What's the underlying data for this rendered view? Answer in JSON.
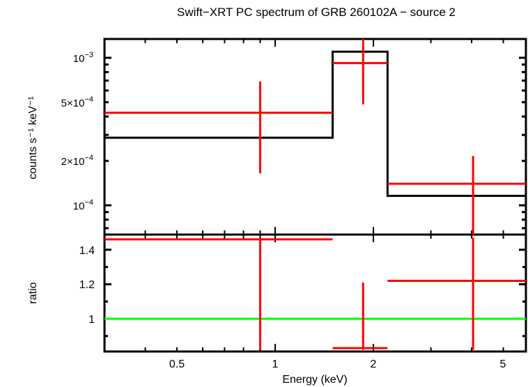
{
  "chart_data": [
    {
      "type": "scatter",
      "panel": "spectrum",
      "title": "Swift-XRT PC spectrum of GRB 260102A - source 2",
      "xlabel": "Energy (keV)",
      "ylabel": "counts s^-1 keV^-1",
      "xscale": "log",
      "yscale": "log",
      "xlim": [
        0.3,
        5.87
      ],
      "ylim": [
        5.5e-05,
        0.00122
      ],
      "ytick_labels": [
        "10^-3",
        "5×10^-4",
        "2×10^-4",
        "10^-4"
      ],
      "ytick_values": [
        0.001,
        0.0005,
        0.0002,
        0.0001
      ],
      "series": [
        {
          "name": "data",
          "color": "#ff0000",
          "style": "errorbar",
          "bins": [
            {
              "x": 0.9,
              "xlo": 0.3,
              "xhi": 1.5,
              "y": 0.000424,
              "ylo": 0.000165,
              "yhi": 0.000691
            },
            {
              "x": 1.86,
              "xlo": 1.5,
              "xhi": 2.21,
              "y": 0.00092,
              "ylo": 0.000483,
              "yhi": 0.00135
            },
            {
              "x": 4.04,
              "xlo": 2.21,
              "xhi": 5.87,
              "y": 0.00014,
              "ylo": 5.5e-05,
              "yhi": 0.000216
            }
          ]
        },
        {
          "name": "model",
          "color": "#000000",
          "style": "step",
          "bins": [
            {
              "xlo": 0.3,
              "xhi": 1.5,
              "y": 0.000287
            },
            {
              "xlo": 1.5,
              "xhi": 2.21,
              "y": 0.0011
            },
            {
              "xlo": 2.21,
              "xhi": 5.87,
              "y": 0.000116
            }
          ]
        }
      ]
    },
    {
      "type": "scatter",
      "panel": "ratio",
      "xlabel": "Energy (keV)",
      "ylabel": "ratio",
      "xscale": "log",
      "yscale": "linear",
      "xlim": [
        0.3,
        5.87
      ],
      "ylim": [
        0.82,
        1.47
      ],
      "xtick_labels": [
        "0.5",
        "1",
        "2",
        "5"
      ],
      "xtick_values": [
        0.5,
        1,
        2,
        5
      ],
      "ytick_labels": [
        "1.4",
        "1.2",
        "1"
      ],
      "ytick_values": [
        1.4,
        1.2,
        1.0
      ],
      "reference_line": {
        "y": 1.0,
        "color": "#00ff00"
      },
      "series": [
        {
          "name": "ratio",
          "color": "#ff0000",
          "style": "errorbar",
          "bins": [
            {
              "x": 0.9,
              "xlo": 0.3,
              "xhi": 1.5,
              "y": 1.46,
              "ylo": 0.82,
              "yhi": 1.47
            },
            {
              "x": 1.86,
              "xlo": 1.5,
              "xhi": 2.21,
              "y": 0.83,
              "ylo": 0.82,
              "yhi": 1.21
            },
            {
              "x": 4.04,
              "xlo": 2.21,
              "xhi": 5.87,
              "y": 1.22,
              "ylo": 0.82,
              "yhi": 1.47
            }
          ]
        }
      ]
    }
  ],
  "labels": {
    "title": "Swift−XRT PC spectrum of GRB 260102A − source 2",
    "xlabel": "Energy (keV)",
    "ylabel_top": "counts s⁻¹ keV⁻¹",
    "ylabel_bottom": "ratio",
    "xticks": [
      "0.5",
      "1",
      "2",
      "5"
    ],
    "yticks_top": [
      "10⁻³",
      "5×10⁻⁴",
      "2×10⁻⁴",
      "10⁻⁴"
    ],
    "yticks_bottom": [
      "1.4",
      "1.2",
      "1"
    ]
  }
}
